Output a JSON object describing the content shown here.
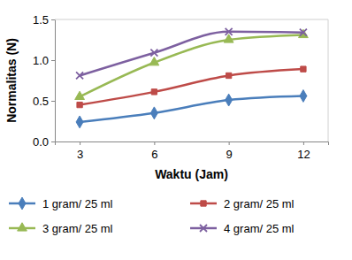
{
  "chart_data": {
    "type": "line",
    "x_label": "Waktu (Jam)",
    "y_label": "Normalitas (N)",
    "x": [
      3,
      6,
      9,
      12
    ],
    "xlim": [
      2,
      13
    ],
    "xticks": [
      3,
      6,
      9,
      12
    ],
    "ylim": [
      0,
      1.5
    ],
    "yticks": [
      {
        "value": 0,
        "label": "0.0"
      },
      {
        "value": 0.5,
        "label": "0.5"
      },
      {
        "value": 1,
        "label": "1.0"
      },
      {
        "value": 1.5,
        "label": "1.5"
      }
    ],
    "grid": false,
    "legend": "bottom",
    "series": [
      {
        "name": "1 gram/ 25 ml",
        "color": "#4a7ebb",
        "marker": "diamond",
        "values": [
          0.24,
          0.35,
          0.51,
          0.56
        ]
      },
      {
        "name": "2 gram/ 25 ml",
        "color": "#be4b48",
        "marker": "square",
        "values": [
          0.45,
          0.61,
          0.81,
          0.89
        ]
      },
      {
        "name": "3 gram/ 25 ml",
        "color": "#98b954",
        "marker": "triangle",
        "values": [
          0.55,
          0.97,
          1.25,
          1.31
        ]
      },
      {
        "name": "4 gram/ 25 ml",
        "color": "#7d60a0",
        "marker": "x",
        "values": [
          0.81,
          1.09,
          1.35,
          1.34
        ]
      }
    ]
  }
}
